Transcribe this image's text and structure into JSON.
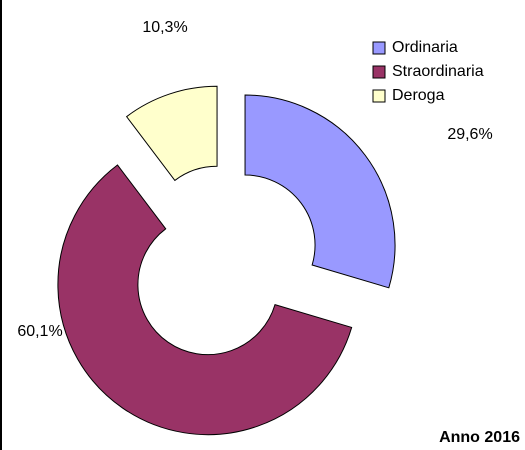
{
  "chart_data": {
    "type": "donut",
    "title": "Anno 2016",
    "categories": [
      "Ordinaria",
      "Straordinaria",
      "Deroga"
    ],
    "values": [
      29.6,
      60.1,
      10.3
    ],
    "value_labels": [
      "29,6%",
      "60,1%",
      "10,3%"
    ],
    "colors": [
      "#9999ff",
      "#993366",
      "#ffffcc"
    ],
    "legend": "top-right"
  }
}
